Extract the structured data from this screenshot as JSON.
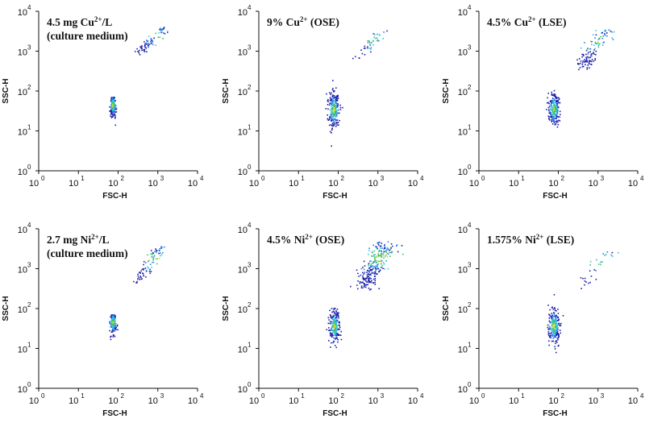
{
  "chart_data": [
    {
      "type": "scatter",
      "title": "4.5 mg Cu2+/L",
      "title_parts": {
        "pre": "4.5 mg Cu",
        "sup": "2+",
        "post": "/L"
      },
      "subtitle": "(culture medium)",
      "xlabel": "FSC-H",
      "ylabel": "SSC-H",
      "xscale": "log",
      "yscale": "log",
      "xlim": [
        1,
        10000
      ],
      "ylim": [
        1,
        10000
      ],
      "clusters": [
        {
          "x_center": 72,
          "x_spread": 0.045,
          "y_range": [
            22,
            95
          ],
          "count": 220,
          "shape": "teardrop"
        },
        {
          "x_center": 650,
          "x_spread": 0.14,
          "y_range": [
            900,
            3600
          ],
          "count": 70,
          "shape": "diagonal"
        }
      ]
    },
    {
      "type": "scatter",
      "title": "9% Cu2+ (OSE)",
      "title_parts": {
        "pre": "9% Cu",
        "sup": "2+",
        "post": " (OSE)"
      },
      "subtitle": "",
      "xlabel": "FSC-H",
      "ylabel": "SSC-H",
      "xscale": "log",
      "yscale": "log",
      "xlim": [
        1,
        10000
      ],
      "ylim": [
        1,
        10000
      ],
      "clusters": [
        {
          "x_center": 75,
          "x_spread": 0.07,
          "y_range": [
            11,
            110
          ],
          "count": 260,
          "shape": "oval"
        },
        {
          "x_center": 600,
          "x_spread": 0.2,
          "y_range": [
            700,
            3000
          ],
          "count": 40,
          "shape": "diagonal"
        }
      ]
    },
    {
      "type": "scatter",
      "title": "4.5% Cu2+ (LSE)",
      "title_parts": {
        "pre": "4.5% Cu",
        "sup": "2+",
        "post": " (LSE)"
      },
      "subtitle": "",
      "xlabel": "FSC-H",
      "ylabel": "SSC-H",
      "xscale": "log",
      "yscale": "log",
      "xlim": [
        1,
        10000
      ],
      "ylim": [
        1,
        10000
      ],
      "clusters": [
        {
          "x_center": 75,
          "x_spread": 0.065,
          "y_range": [
            13,
            100
          ],
          "count": 240,
          "shape": "oval"
        },
        {
          "x_center": 750,
          "x_spread": 0.22,
          "y_range": [
            400,
            3500
          ],
          "count": 120,
          "shape": "diagonal"
        }
      ]
    },
    {
      "type": "scatter",
      "title": "2.7 mg Ni2+/L",
      "title_parts": {
        "pre": "2.7 mg Ni",
        "sup": "2+",
        "post": "/L"
      },
      "subtitle": "(culture medium)",
      "xlabel": "FSC-H",
      "ylabel": "SSC-H",
      "xscale": "log",
      "yscale": "log",
      "xlim": [
        1,
        10000
      ],
      "ylim": [
        1,
        10000
      ],
      "clusters": [
        {
          "x_center": 72,
          "x_spread": 0.05,
          "y_range": [
            22,
            95
          ],
          "count": 220,
          "shape": "teardrop"
        },
        {
          "x_center": 550,
          "x_spread": 0.16,
          "y_range": [
            450,
            3500
          ],
          "count": 80,
          "shape": "diagonal"
        }
      ]
    },
    {
      "type": "scatter",
      "title": "4.5% Ni2+ (OSE)",
      "title_parts": {
        "pre": "4.5% Ni",
        "sup": "2+",
        "post": " (OSE)"
      },
      "subtitle": "",
      "xlabel": "FSC-H",
      "ylabel": "SSC-H",
      "xscale": "log",
      "yscale": "log",
      "xlim": [
        1,
        10000
      ],
      "ylim": [
        1,
        10000
      ],
      "clusters": [
        {
          "x_center": 78,
          "x_spread": 0.06,
          "y_range": [
            12,
            110
          ],
          "count": 230,
          "shape": "oval"
        },
        {
          "x_center": 800,
          "x_spread": 0.3,
          "y_range": [
            350,
            4200
          ],
          "count": 260,
          "shape": "diagonal"
        }
      ]
    },
    {
      "type": "scatter",
      "title": "1.575% Ni2+ (LSE)",
      "title_parts": {
        "pre": "1.575% Ni",
        "sup": "2+",
        "post": " (LSE)"
      },
      "subtitle": "",
      "xlabel": "FSC-H",
      "ylabel": "SSC-H",
      "xscale": "log",
      "yscale": "log",
      "xlim": [
        1,
        10000
      ],
      "ylim": [
        1,
        10000
      ],
      "clusters": [
        {
          "x_center": 75,
          "x_spread": 0.07,
          "y_range": [
            12,
            115
          ],
          "count": 250,
          "shape": "oval"
        },
        {
          "x_center": 900,
          "x_spread": 0.3,
          "y_range": [
            350,
            3500
          ],
          "count": 30,
          "shape": "diagonal"
        }
      ]
    }
  ],
  "axis_ticks": {
    "x": [
      {
        "base": "10",
        "exp": "0"
      },
      {
        "base": "10",
        "exp": "1"
      },
      {
        "base": "10",
        "exp": "2"
      },
      {
        "base": "10",
        "exp": "3"
      },
      {
        "base": "10",
        "exp": "4"
      }
    ],
    "y": [
      {
        "base": "10",
        "exp": "0"
      },
      {
        "base": "10",
        "exp": "1"
      },
      {
        "base": "10",
        "exp": "2"
      },
      {
        "base": "10",
        "exp": "3"
      },
      {
        "base": "10",
        "exp": "4"
      }
    ]
  },
  "colors": {
    "axis": "#111111",
    "density_scale": [
      "#1b1fa8",
      "#2d7ee6",
      "#35c7e0",
      "#3fbf6a",
      "#d8d83a"
    ]
  }
}
